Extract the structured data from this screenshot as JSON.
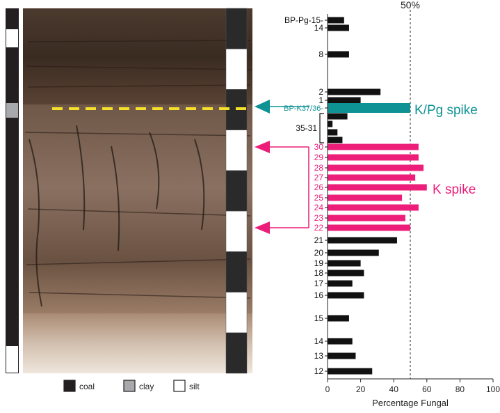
{
  "legend": {
    "items": [
      {
        "label": "coal",
        "color": "#231f20"
      },
      {
        "label": "clay",
        "color": "#a7a9ac"
      },
      {
        "label": "silt",
        "color": "#ffffff"
      }
    ]
  },
  "photo_panel": {
    "scale_bar_pattern": [
      "black",
      "white",
      "black",
      "white",
      "black",
      "white",
      "black",
      "white",
      "black"
    ]
  },
  "chart_data": {
    "type": "bar",
    "orientation": "horizontal",
    "xlabel": "Percentage Fungal",
    "xlim": [
      0,
      100
    ],
    "xticks": [
      0,
      20,
      40,
      60,
      80,
      100
    ],
    "reference_line": {
      "value": 50,
      "label": "50%"
    },
    "series_colors": {
      "normal": "#111111",
      "k_spike": "#ec1e79",
      "kpg_spike": "#0f9294"
    },
    "bars": [
      {
        "label": "BP-Pg-15",
        "value": 10,
        "group": "normal"
      },
      {
        "label": "14",
        "value": 13,
        "group": "normal"
      },
      {
        "label": "8",
        "value": 13,
        "group": "normal"
      },
      {
        "label": "2",
        "value": 32,
        "group": "normal"
      },
      {
        "label": "1",
        "value": 20,
        "group": "normal"
      },
      {
        "label": "BP-K37/36",
        "value": 50,
        "group": "kpg_spike"
      },
      {
        "label": "",
        "value": 12,
        "group": "normal"
      },
      {
        "label": "",
        "value": 3,
        "group": "normal"
      },
      {
        "label": "",
        "value": 6,
        "group": "normal"
      },
      {
        "label": "",
        "value": 9,
        "group": "normal"
      },
      {
        "label": "30",
        "value": 55,
        "group": "k_spike"
      },
      {
        "label": "29",
        "value": 55,
        "group": "k_spike"
      },
      {
        "label": "28",
        "value": 58,
        "group": "k_spike"
      },
      {
        "label": "27",
        "value": 53,
        "group": "k_spike"
      },
      {
        "label": "26",
        "value": 60,
        "group": "k_spike"
      },
      {
        "label": "25",
        "value": 45,
        "group": "k_spike"
      },
      {
        "label": "24",
        "value": 55,
        "group": "k_spike"
      },
      {
        "label": "23",
        "value": 47,
        "group": "k_spike"
      },
      {
        "label": "22",
        "value": 50,
        "group": "k_spike"
      },
      {
        "label": "21",
        "value": 42,
        "group": "normal"
      },
      {
        "label": "20",
        "value": 31,
        "group": "normal"
      },
      {
        "label": "19",
        "value": 20,
        "group": "normal"
      },
      {
        "label": "18",
        "value": 22,
        "group": "normal"
      },
      {
        "label": "17",
        "value": 15,
        "group": "normal"
      },
      {
        "label": "16",
        "value": 22,
        "group": "normal"
      },
      {
        "label": "15",
        "value": 13,
        "group": "normal"
      },
      {
        "label": "14",
        "value": 15,
        "group": "normal"
      },
      {
        "label": "13",
        "value": 17,
        "group": "normal"
      },
      {
        "label": "12",
        "value": 27,
        "group": "normal"
      }
    ],
    "bracket_label": "35-31",
    "annotations": [
      {
        "text": "K/Pg spike",
        "color": "#0f9294"
      },
      {
        "text": "K spike",
        "color": "#ec1e79"
      }
    ]
  }
}
